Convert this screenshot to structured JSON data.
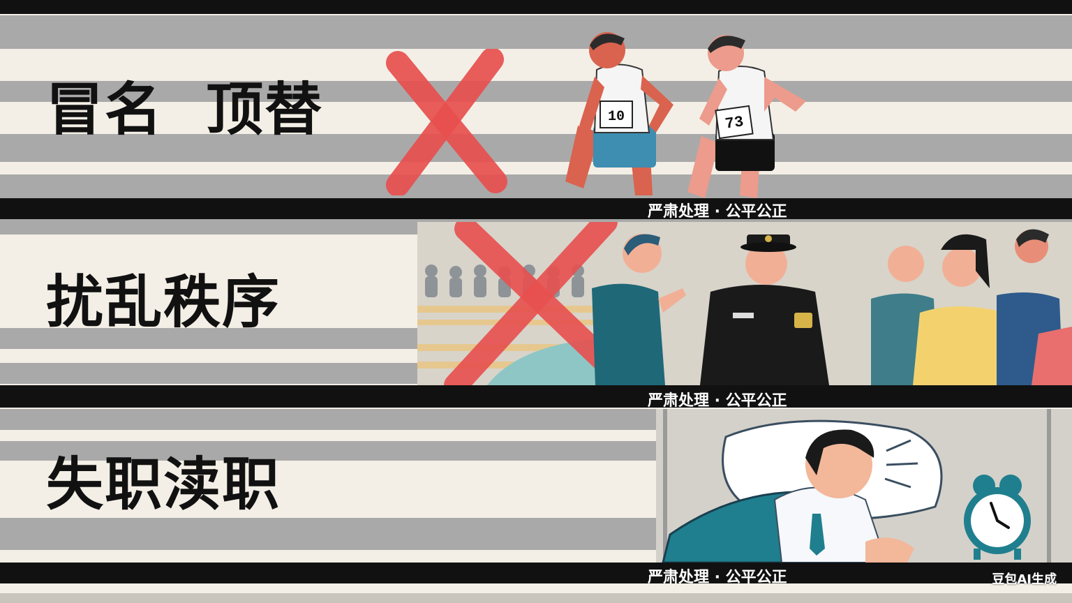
{
  "panels": [
    {
      "title": "冒名  顶替",
      "caption": "严肃处理 · 公平公正",
      "scene": "runners-illustration"
    },
    {
      "title": "扰乱秩序",
      "caption": "严肃处理 · 公平公正",
      "scene": "crowd-police-illustration"
    },
    {
      "title": "失职渎职",
      "caption": "严肃处理 · 公平公正",
      "scene": "sleeping-official-illustration"
    }
  ],
  "bibs": {
    "runner_left": "10",
    "runner_right": "73"
  },
  "watermark": "豆包AI生成",
  "colors": {
    "cross_red": "#e8504f",
    "bar_black": "#111111",
    "stripe_gray": "#a9a9a9",
    "paper": "#f3efe6"
  }
}
